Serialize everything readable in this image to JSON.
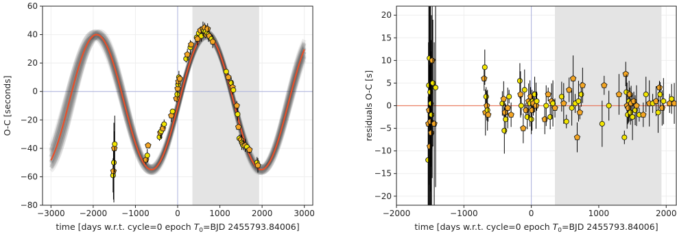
{
  "chart_data": [
    {
      "type": "scatter",
      "panel": "left",
      "xlabel_prefix": "time [days w.r.t. cycle=0 epoch ",
      "xlabel_t0": "T",
      "xlabel_sub": "0",
      "xlabel_suffix": "=BJD 2455793.84006]",
      "ylabel": "O-C [seconds]",
      "xlim": [
        -3200,
        3200
      ],
      "ylim": [
        -80,
        60
      ],
      "xticks": [
        -3000,
        -2000,
        -1000,
        0,
        1000,
        2000,
        3000
      ],
      "yticks": [
        -80,
        -60,
        -40,
        -20,
        0,
        20,
        40,
        60
      ],
      "grid": true,
      "shaded_region": [
        350,
        1930
      ],
      "model": {
        "amplitude": 47.5,
        "offset": -7.5,
        "period": 2600,
        "peak_time": 680,
        "color": "#e8502a",
        "envelope_color": "#333333"
      },
      "x": [
        -1530,
        -1520,
        -1510,
        -1500,
        -1490,
        -750,
        -720,
        -700,
        -430,
        -410,
        -390,
        -350,
        -320,
        -150,
        -120,
        -30,
        -10,
        0,
        10,
        20,
        30,
        50,
        200,
        230,
        300,
        320,
        450,
        470,
        500,
        540,
        560,
        600,
        620,
        640,
        660,
        680,
        700,
        710,
        730,
        750,
        800,
        830,
        1150,
        1200,
        1270,
        1300,
        1320,
        1400,
        1420,
        1440,
        1460,
        1500,
        1520,
        1540,
        1560,
        1600,
        1640,
        1700,
        1880,
        1900
      ],
      "y": [
        -59,
        -56,
        -50,
        -40,
        -37,
        -48,
        -45,
        -38,
        -32,
        -29,
        -28,
        -26,
        -23,
        -17,
        -14,
        -5,
        -2,
        2,
        5,
        7,
        10,
        9,
        23,
        26,
        31,
        33,
        38,
        37,
        41,
        43,
        39,
        44,
        43,
        45,
        42,
        40,
        41,
        44,
        40,
        39,
        37,
        35,
        14,
        10,
        6,
        3,
        1,
        -10,
        -16,
        -25,
        -33,
        -34,
        -36,
        -37,
        -38,
        -38,
        -39,
        -41,
        -50,
        -52
      ]
    },
    {
      "type": "scatter",
      "panel": "right",
      "xlabel_prefix": "time [days w.r.t. cycle=0 epoch ",
      "xlabel_t0": "T",
      "xlabel_sub": "0",
      "xlabel_suffix": "=BJD 2455793.84006]",
      "ylabel": "residuals O-C [s]",
      "xlim": [
        -2000,
        2150
      ],
      "ylim": [
        -22,
        22
      ],
      "xticks": [
        -2000,
        -1000,
        0,
        1000,
        2000
      ],
      "yticks": [
        -20,
        -15,
        -10,
        -5,
        0,
        5,
        10,
        15,
        20
      ],
      "grid": true,
      "shaded_region": [
        350,
        1930
      ],
      "zero_line_color": "#e8502a",
      "x": [
        -1530,
        -1525,
        -1520,
        -1515,
        -1510,
        -1505,
        -1500,
        -1495,
        -1490,
        -1485,
        -1480,
        -1470,
        -1460,
        -1440,
        -1420,
        -700,
        -690,
        -680,
        -670,
        -660,
        -650,
        -640,
        -430,
        -410,
        -400,
        -390,
        -380,
        -350,
        -330,
        -300,
        -170,
        -160,
        -150,
        -120,
        -100,
        -80,
        -60,
        -40,
        -20,
        -10,
        0,
        10,
        20,
        30,
        50,
        70,
        80,
        200,
        220,
        250,
        280,
        300,
        320,
        350,
        450,
        480,
        520,
        560,
        600,
        620,
        650,
        680,
        700,
        720,
        740,
        760,
        1050,
        1080,
        1150,
        1300,
        1380,
        1400,
        1410,
        1420,
        1430,
        1440,
        1450,
        1460,
        1470,
        1480,
        1500,
        1520,
        1540,
        1560,
        1600,
        1660,
        1700,
        1750,
        1800,
        1850,
        1880,
        1900,
        1910,
        1940,
        1960,
        2050,
        2080,
        2120
      ],
      "y": [
        -12,
        -4,
        4.5,
        -1,
        10.5,
        -9,
        3,
        -3.5,
        0.5,
        -6,
        -2,
        10,
        5,
        -4,
        4,
        6,
        8.5,
        -1.5,
        2,
        0,
        -1,
        -2,
        0.5,
        1.5,
        -5.5,
        -1.5,
        -3,
        -0.5,
        2,
        -2,
        5.5,
        2.5,
        0,
        -5,
        3.5,
        -1,
        -2.5,
        1,
        0.5,
        2,
        -3,
        -1,
        1,
        0.5,
        2.5,
        0,
        1,
        -3,
        0,
        2.5,
        -2.5,
        1,
        0.5,
        -0.5,
        2,
        0.5,
        -3.5,
        3.5,
        -0.5,
        6,
        0.5,
        -7,
        1,
        -1.5,
        2.5,
        4.5,
        -4,
        4.5,
        0,
        2.5,
        -7,
        7,
        3,
        0,
        -2,
        -0.5,
        1,
        2.5,
        -1.5,
        0.5,
        -2.5,
        1,
        -1,
        0,
        -2,
        -2,
        2.5,
        0.5,
        0.5,
        1,
        -1.5,
        4,
        2.5,
        -0.5,
        1,
        0.5,
        1.5,
        0.5
      ]
    }
  ],
  "colors": {
    "face_pentagon": "#f5a623",
    "face_circle": "#f3e600",
    "edge": "#1a1a1a",
    "errorbar": "#000000",
    "shade": "#e4e4e4",
    "grid": "#eeeeee",
    "cross_line": "#aab0dd"
  }
}
